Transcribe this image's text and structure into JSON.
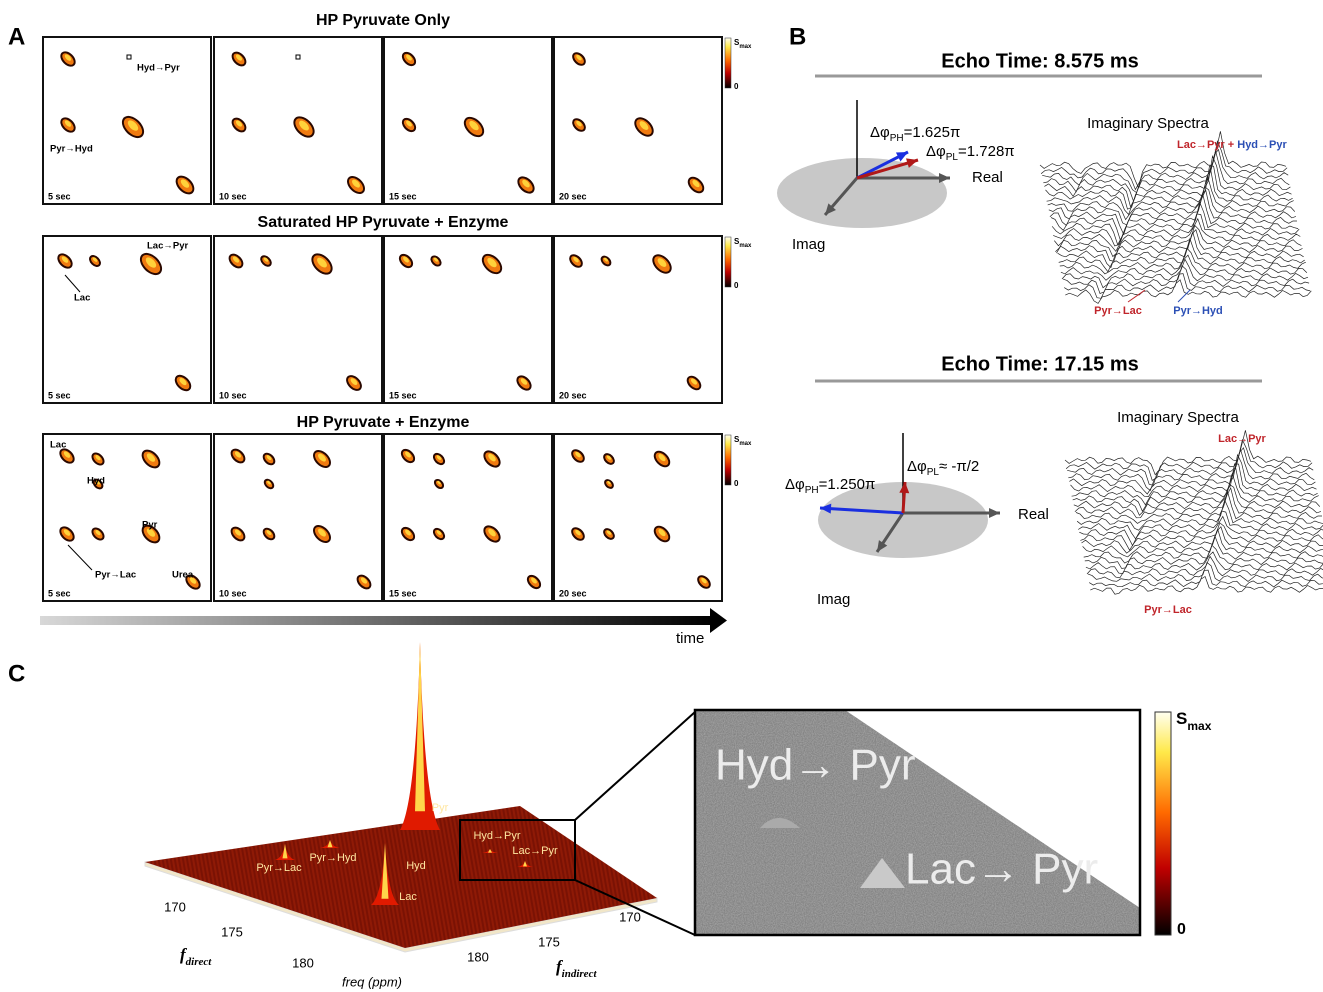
{
  "panel_a": {
    "label": "A",
    "rows": [
      {
        "title": "HP Pyruvate Only",
        "times": [
          "5 sec",
          "10 sec",
          "15 sec",
          "20 sec"
        ],
        "annotations": [
          "Hyd→Pyr",
          "Pyr→Hyd"
        ]
      },
      {
        "title": "Saturated HP Pyruvate + Enzyme",
        "times": [
          "5 sec",
          "10 sec",
          "15 sec",
          "20 sec"
        ],
        "annotations": [
          "Lac→Pyr",
          "Lac"
        ]
      },
      {
        "title": "HP Pyruvate + Enzyme",
        "times": [
          "5 sec",
          "10 sec",
          "15 sec",
          "20 sec"
        ],
        "annotations": [
          "Lac",
          "Hyd",
          "Pyr",
          "Pyr→Lac",
          "Urea"
        ]
      }
    ],
    "colorbar": {
      "max": "S",
      "max_sub": "max",
      "min": "0"
    },
    "time_axis": "time"
  },
  "panel_b": {
    "label": "B",
    "echoes": [
      {
        "title": "Echo Time: 8.575 ms",
        "real": "Real",
        "imag": "Imag",
        "phases": [
          {
            "symbol": "Δφ",
            "sub": "PH",
            "value": "=1.625π"
          },
          {
            "symbol": "Δφ",
            "sub": "PL",
            "value": "=1.728π"
          }
        ],
        "spectra_title": "Imaginary Spectra",
        "top_labels": [
          {
            "text": "Lac→Pyr",
            "color": "#c0252b"
          },
          {
            "text": " + ",
            "color": "#c0252b"
          },
          {
            "text": "Hyd→Pyr",
            "color": "#2b4fb5"
          }
        ],
        "bottom_labels": [
          {
            "text": "Pyr→Lac",
            "color": "#c0252b"
          },
          {
            "text": "Pyr→Hyd",
            "color": "#2b4fb5"
          }
        ]
      },
      {
        "title": "Echo Time: 17.15 ms",
        "real": "Real",
        "imag": "Imag",
        "phases": [
          {
            "symbol": "Δφ",
            "sub": "PH",
            "value": "=1.250π"
          },
          {
            "symbol": "Δφ",
            "sub": "PL",
            "value": "≈ -π/2"
          }
        ],
        "spectra_title": "Imaginary Spectra",
        "top_labels": [
          {
            "text": "Lac→Pyr",
            "color": "#c0252b"
          }
        ],
        "bottom_labels": [
          {
            "text": "Pyr→Lac",
            "color": "#c0252b"
          }
        ]
      }
    ]
  },
  "panel_c": {
    "label": "C",
    "peaks": [
      "Pyr",
      "Pyr→Lac",
      "Pyr→Hyd",
      "Hyd",
      "Lac",
      "Hyd→Pyr",
      "Lac→Pyr"
    ],
    "direct_ticks": [
      170,
      175,
      180
    ],
    "direct_label": {
      "text": "f",
      "sub": "direct"
    },
    "indirect_ticks": [
      180,
      175,
      170
    ],
    "indirect_label": {
      "text": "f",
      "sub": "indirect"
    },
    "unit_label": "freq (ppm)",
    "zoom_labels": [
      "Hyd→ Pyr",
      "Lac→ Pyr"
    ],
    "colorbar": {
      "max": "S",
      "max_sub": "max",
      "min": "0"
    }
  }
}
